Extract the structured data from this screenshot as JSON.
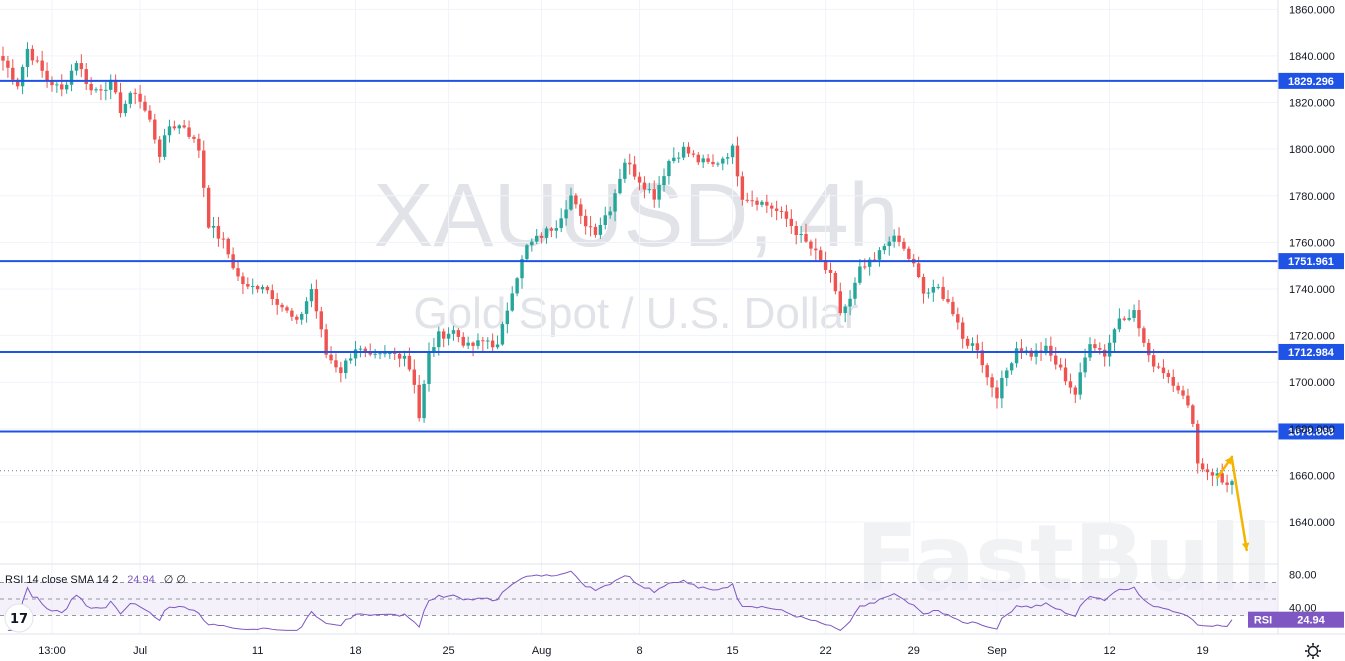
{
  "chart_data": {
    "type": "candlestick",
    "symbol": "XAUUSD",
    "timeframe": "4h",
    "watermark_title": "XAUUSD, 4h",
    "watermark_subtitle": "Gold Spot / U.S. Dollar",
    "watermark_brand": "FastBull",
    "ylim": [
      1622,
      1864
    ],
    "y_ticks": [
      "1860.000",
      "1840.000",
      "1820.000",
      "1800.000",
      "1780.000",
      "1760.000",
      "1740.000",
      "1720.000",
      "1700.000",
      "1680.000",
      "1660.000",
      "1640.000"
    ],
    "y_tick_values": [
      1860,
      1840,
      1820,
      1800,
      1780,
      1760,
      1740,
      1720,
      1700,
      1680,
      1660,
      1640
    ],
    "x_ticks": [
      "13:00",
      "Jul",
      "11",
      "18",
      "25",
      "Aug",
      "8",
      "15",
      "22",
      "29",
      "Sep",
      "12",
      "19"
    ],
    "x_tick_index": [
      10,
      28,
      52,
      72,
      91,
      110,
      130,
      149,
      168,
      186,
      203,
      226,
      245
    ],
    "n_candles": 252,
    "price_path_anchors": [
      [
        0,
        1838
      ],
      [
        3,
        1828
      ],
      [
        5,
        1843
      ],
      [
        9,
        1830
      ],
      [
        12,
        1825
      ],
      [
        15,
        1838
      ],
      [
        18,
        1825
      ],
      [
        22,
        1828
      ],
      [
        24,
        1817
      ],
      [
        27,
        1825
      ],
      [
        30,
        1812
      ],
      [
        32,
        1798
      ],
      [
        34,
        1810
      ],
      [
        37,
        1810
      ],
      [
        40,
        1800
      ],
      [
        42,
        1768
      ],
      [
        45,
        1760
      ],
      [
        48,
        1745
      ],
      [
        50,
        1740
      ],
      [
        53,
        1742
      ],
      [
        56,
        1735
      ],
      [
        60,
        1725
      ],
      [
        63,
        1740
      ],
      [
        66,
        1712
      ],
      [
        69,
        1705
      ],
      [
        72,
        1715
      ],
      [
        75,
        1710
      ],
      [
        79,
        1712
      ],
      [
        82,
        1712
      ],
      [
        84,
        1700
      ],
      [
        85,
        1685
      ],
      [
        87,
        1712
      ],
      [
        89,
        1720
      ],
      [
        92,
        1722
      ],
      [
        95,
        1715
      ],
      [
        99,
        1718
      ],
      [
        101,
        1715
      ],
      [
        104,
        1740
      ],
      [
        107,
        1758
      ],
      [
        110,
        1763
      ],
      [
        113,
        1768
      ],
      [
        116,
        1780
      ],
      [
        118,
        1770
      ],
      [
        121,
        1765
      ],
      [
        124,
        1775
      ],
      [
        127,
        1795
      ],
      [
        130,
        1787
      ],
      [
        133,
        1780
      ],
      [
        136,
        1795
      ],
      [
        139,
        1800
      ],
      [
        142,
        1795
      ],
      [
        145,
        1793
      ],
      [
        149,
        1800
      ],
      [
        151,
        1780
      ],
      [
        154,
        1778
      ],
      [
        157,
        1775
      ],
      [
        160,
        1770
      ],
      [
        163,
        1762
      ],
      [
        166,
        1755
      ],
      [
        169,
        1745
      ],
      [
        171,
        1730
      ],
      [
        173,
        1735
      ],
      [
        175,
        1748
      ],
      [
        178,
        1752
      ],
      [
        181,
        1762
      ],
      [
        183,
        1760
      ],
      [
        186,
        1750
      ],
      [
        188,
        1738
      ],
      [
        191,
        1740
      ],
      [
        193,
        1735
      ],
      [
        196,
        1718
      ],
      [
        199,
        1715
      ],
      [
        201,
        1702
      ],
      [
        203,
        1695
      ],
      [
        205,
        1705
      ],
      [
        207,
        1715
      ],
      [
        210,
        1712
      ],
      [
        213,
        1714
      ],
      [
        216,
        1705
      ],
      [
        219,
        1695
      ],
      [
        222,
        1718
      ],
      [
        225,
        1712
      ],
      [
        228,
        1728
      ],
      [
        231,
        1730
      ],
      [
        234,
        1710
      ],
      [
        237,
        1705
      ],
      [
        240,
        1698
      ],
      [
        243,
        1684
      ],
      [
        244,
        1665
      ],
      [
        246,
        1662
      ],
      [
        248,
        1660
      ],
      [
        249,
        1657
      ]
    ],
    "horizontal_levels": [
      1829.296,
      1751.961,
      1712.984,
      1678.868
    ],
    "horizontal_level_labels": [
      "1829.296",
      "1751.961",
      "1712.984",
      "1678.868"
    ],
    "last_price": 1662,
    "forecast_arrows": [
      {
        "from_index": 248,
        "from_price": 1659,
        "to_index": 251,
        "to_price": 1668
      },
      {
        "from_index": 251,
        "from_price": 1667,
        "to_index": 254,
        "to_price": 1628
      }
    ],
    "rsi": {
      "label": "RSI 14 close SMA 14 2",
      "value": "24.94",
      "extra": "∅ ∅",
      "badge_label": "RSI",
      "badge_value": "24.94",
      "ylim": [
        10,
        90
      ],
      "upper_band": 70,
      "middle_band": 50,
      "lower_band": 30,
      "y_ticks": [
        "80.00",
        "40.00"
      ],
      "y_tick_values": [
        80,
        40
      ]
    },
    "colors": {
      "up": "#26a69a",
      "down": "#ef5350",
      "level_line": "#1e53e5",
      "badge_bg": "#1e53e5",
      "rsi_line": "#7e57c2",
      "rsi_fill": "#ede7f6",
      "arrow": "#f4b400",
      "grid": "#f0f3fa"
    }
  },
  "ui": {
    "tv_logo_text": "17",
    "settings_icon": "gear-icon"
  }
}
